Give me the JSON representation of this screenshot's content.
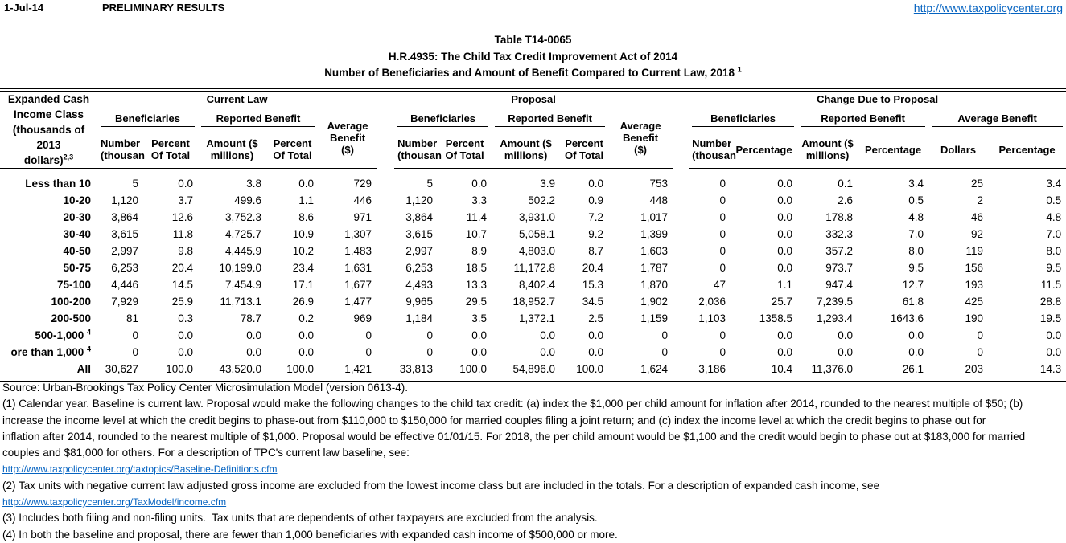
{
  "colors": {
    "link_blue": "#0563C1",
    "text": "#000000",
    "background": "#ffffff"
  },
  "page": {
    "date": "1-Jul-14",
    "status": "PRELIMINARY RESULTS",
    "site_url": "http://www.taxpolicycenter.org"
  },
  "title": {
    "line1": "Table T14-0065",
    "line2": "H.R.4935: The Child Tax Credit Improvement Act of 2014",
    "line3": "Number of Beneficiaries and Amount of Benefit Compared to Current Law, 2018 ",
    "line3_sup": "1"
  },
  "table": {
    "row_header": {
      "label": "Expanded Cash\nIncome Class\n(thousands of 2013\ndollars)",
      "sup": "2,3"
    },
    "groups": {
      "current_law": "Current Law",
      "proposal": "Proposal",
      "change": "Change Due to Proposal"
    },
    "subgroups": {
      "beneficiaries": "Beneficiaries",
      "reported_benefit": "Reported Benefit",
      "average_benefit": "Average Benefit"
    },
    "columns": {
      "number": "Number\n(thousan",
      "percent_of_total": "Percent\nOf Total",
      "amount": "Amount ($\nmillions)",
      "average_benefit_dollars": "Average\nBenefit\n($)",
      "percentage": "Percentage",
      "dollars": "Dollars"
    },
    "rows": [
      {
        "label": "Less than 10",
        "sup": "",
        "current_law": [
          "5",
          "0.0",
          "3.8",
          "0.0",
          "729"
        ],
        "proposal": [
          "5",
          "0.0",
          "3.9",
          "0.0",
          "753"
        ],
        "change": [
          "0",
          "0.0",
          "0.1",
          "3.4",
          "25",
          "3.4"
        ]
      },
      {
        "label": "10-20",
        "sup": "",
        "current_law": [
          "1,120",
          "3.7",
          "499.6",
          "1.1",
          "446"
        ],
        "proposal": [
          "1,120",
          "3.3",
          "502.2",
          "0.9",
          "448"
        ],
        "change": [
          "0",
          "0.0",
          "2.6",
          "0.5",
          "2",
          "0.5"
        ]
      },
      {
        "label": "20-30",
        "sup": "",
        "current_law": [
          "3,864",
          "12.6",
          "3,752.3",
          "8.6",
          "971"
        ],
        "proposal": [
          "3,864",
          "11.4",
          "3,931.0",
          "7.2",
          "1,017"
        ],
        "change": [
          "0",
          "0.0",
          "178.8",
          "4.8",
          "46",
          "4.8"
        ]
      },
      {
        "label": "30-40",
        "sup": "",
        "current_law": [
          "3,615",
          "11.8",
          "4,725.7",
          "10.9",
          "1,307"
        ],
        "proposal": [
          "3,615",
          "10.7",
          "5,058.1",
          "9.2",
          "1,399"
        ],
        "change": [
          "0",
          "0.0",
          "332.3",
          "7.0",
          "92",
          "7.0"
        ]
      },
      {
        "label": "40-50",
        "sup": "",
        "current_law": [
          "2,997",
          "9.8",
          "4,445.9",
          "10.2",
          "1,483"
        ],
        "proposal": [
          "2,997",
          "8.9",
          "4,803.0",
          "8.7",
          "1,603"
        ],
        "change": [
          "0",
          "0.0",
          "357.2",
          "8.0",
          "119",
          "8.0"
        ]
      },
      {
        "label": "50-75",
        "sup": "",
        "current_law": [
          "6,253",
          "20.4",
          "10,199.0",
          "23.4",
          "1,631"
        ],
        "proposal": [
          "6,253",
          "18.5",
          "11,172.8",
          "20.4",
          "1,787"
        ],
        "change": [
          "0",
          "0.0",
          "973.7",
          "9.5",
          "156",
          "9.5"
        ]
      },
      {
        "label": "75-100",
        "sup": "",
        "current_law": [
          "4,446",
          "14.5",
          "7,454.9",
          "17.1",
          "1,677"
        ],
        "proposal": [
          "4,493",
          "13.3",
          "8,402.4",
          "15.3",
          "1,870"
        ],
        "change": [
          "47",
          "1.1",
          "947.4",
          "12.7",
          "193",
          "11.5"
        ]
      },
      {
        "label": "100-200",
        "sup": "",
        "current_law": [
          "7,929",
          "25.9",
          "11,713.1",
          "26.9",
          "1,477"
        ],
        "proposal": [
          "9,965",
          "29.5",
          "18,952.7",
          "34.5",
          "1,902"
        ],
        "change": [
          "2,036",
          "25.7",
          "7,239.5",
          "61.8",
          "425",
          "28.8"
        ]
      },
      {
        "label": "200-500",
        "sup": "",
        "current_law": [
          "81",
          "0.3",
          "78.7",
          "0.2",
          "969"
        ],
        "proposal": [
          "1,184",
          "3.5",
          "1,372.1",
          "2.5",
          "1,159"
        ],
        "change": [
          "1,103",
          "1358.5",
          "1,293.4",
          "1643.6",
          "190",
          "19.5"
        ]
      },
      {
        "label": "500-1,000 ",
        "sup": "4",
        "current_law": [
          "0",
          "0.0",
          "0.0",
          "0.0",
          "0"
        ],
        "proposal": [
          "0",
          "0.0",
          "0.0",
          "0.0",
          "0"
        ],
        "change": [
          "0",
          "0.0",
          "0.0",
          "0.0",
          "0",
          "0.0"
        ]
      },
      {
        "label": "ore than 1,000 ",
        "sup": "4",
        "current_law": [
          "0",
          "0.0",
          "0.0",
          "0.0",
          "0"
        ],
        "proposal": [
          "0",
          "0.0",
          "0.0",
          "0.0",
          "0"
        ],
        "change": [
          "0",
          "0.0",
          "0.0",
          "0.0",
          "0",
          "0.0"
        ]
      },
      {
        "label": "All",
        "sup": "",
        "current_law": [
          "30,627",
          "100.0",
          "43,520.0",
          "100.0",
          "1,421"
        ],
        "proposal": [
          "33,813",
          "100.0",
          "54,896.0",
          "100.0",
          "1,624"
        ],
        "change": [
          "3,186",
          "10.4",
          "11,376.0",
          "26.1",
          "203",
          "14.3"
        ]
      }
    ]
  },
  "footnotes": {
    "lines": [
      {
        "kind": "text",
        "text": "Source: Urban-Brookings Tax Policy Center Microsimulation Model (version 0613-4)."
      },
      {
        "kind": "text",
        "text": "(1) Calendar year. Baseline is current law. Proposal would make the following changes to the child tax credit: (a) index the $1,000 per child amount for inflation after 2014, rounded to the nearest multiple of $50; (b)"
      },
      {
        "kind": "text",
        "text": "increase the income level at which the credit begins to phase-out from $110,000 to $150,000 for married couples filing a joint return; and (c) index the income level at which the credit begins to phase out for"
      },
      {
        "kind": "text",
        "text": "inflation after 2014, rounded to the nearest multiple of $1,000. Proposal would be effective 01/01/15. For 2018, the per child amount would be $1,100 and the credit would begin to phase out at $183,000 for married"
      },
      {
        "kind": "text",
        "text": "couples and $81,000 for others. For a description of TPC's current law baseline, see:"
      },
      {
        "kind": "link",
        "text": "http://www.taxpolicycenter.org/taxtopics/Baseline-Definitions.cfm"
      },
      {
        "kind": "text",
        "text": "(2) Tax units with negative current law adjusted gross income are excluded from the lowest income class but are included in the totals. For a description of expanded cash income, see"
      },
      {
        "kind": "link",
        "text": "http://www.taxpolicycenter.org/TaxModel/income.cfm"
      },
      {
        "kind": "text",
        "text": "(3) Includes both filing and non-filing units.  Tax units that are dependents of other taxpayers are excluded from the analysis."
      },
      {
        "kind": "text",
        "text": "(4) In both the baseline and proposal, there are fewer than 1,000 beneficiaries with expanded cash income of $500,000 or more."
      }
    ]
  }
}
